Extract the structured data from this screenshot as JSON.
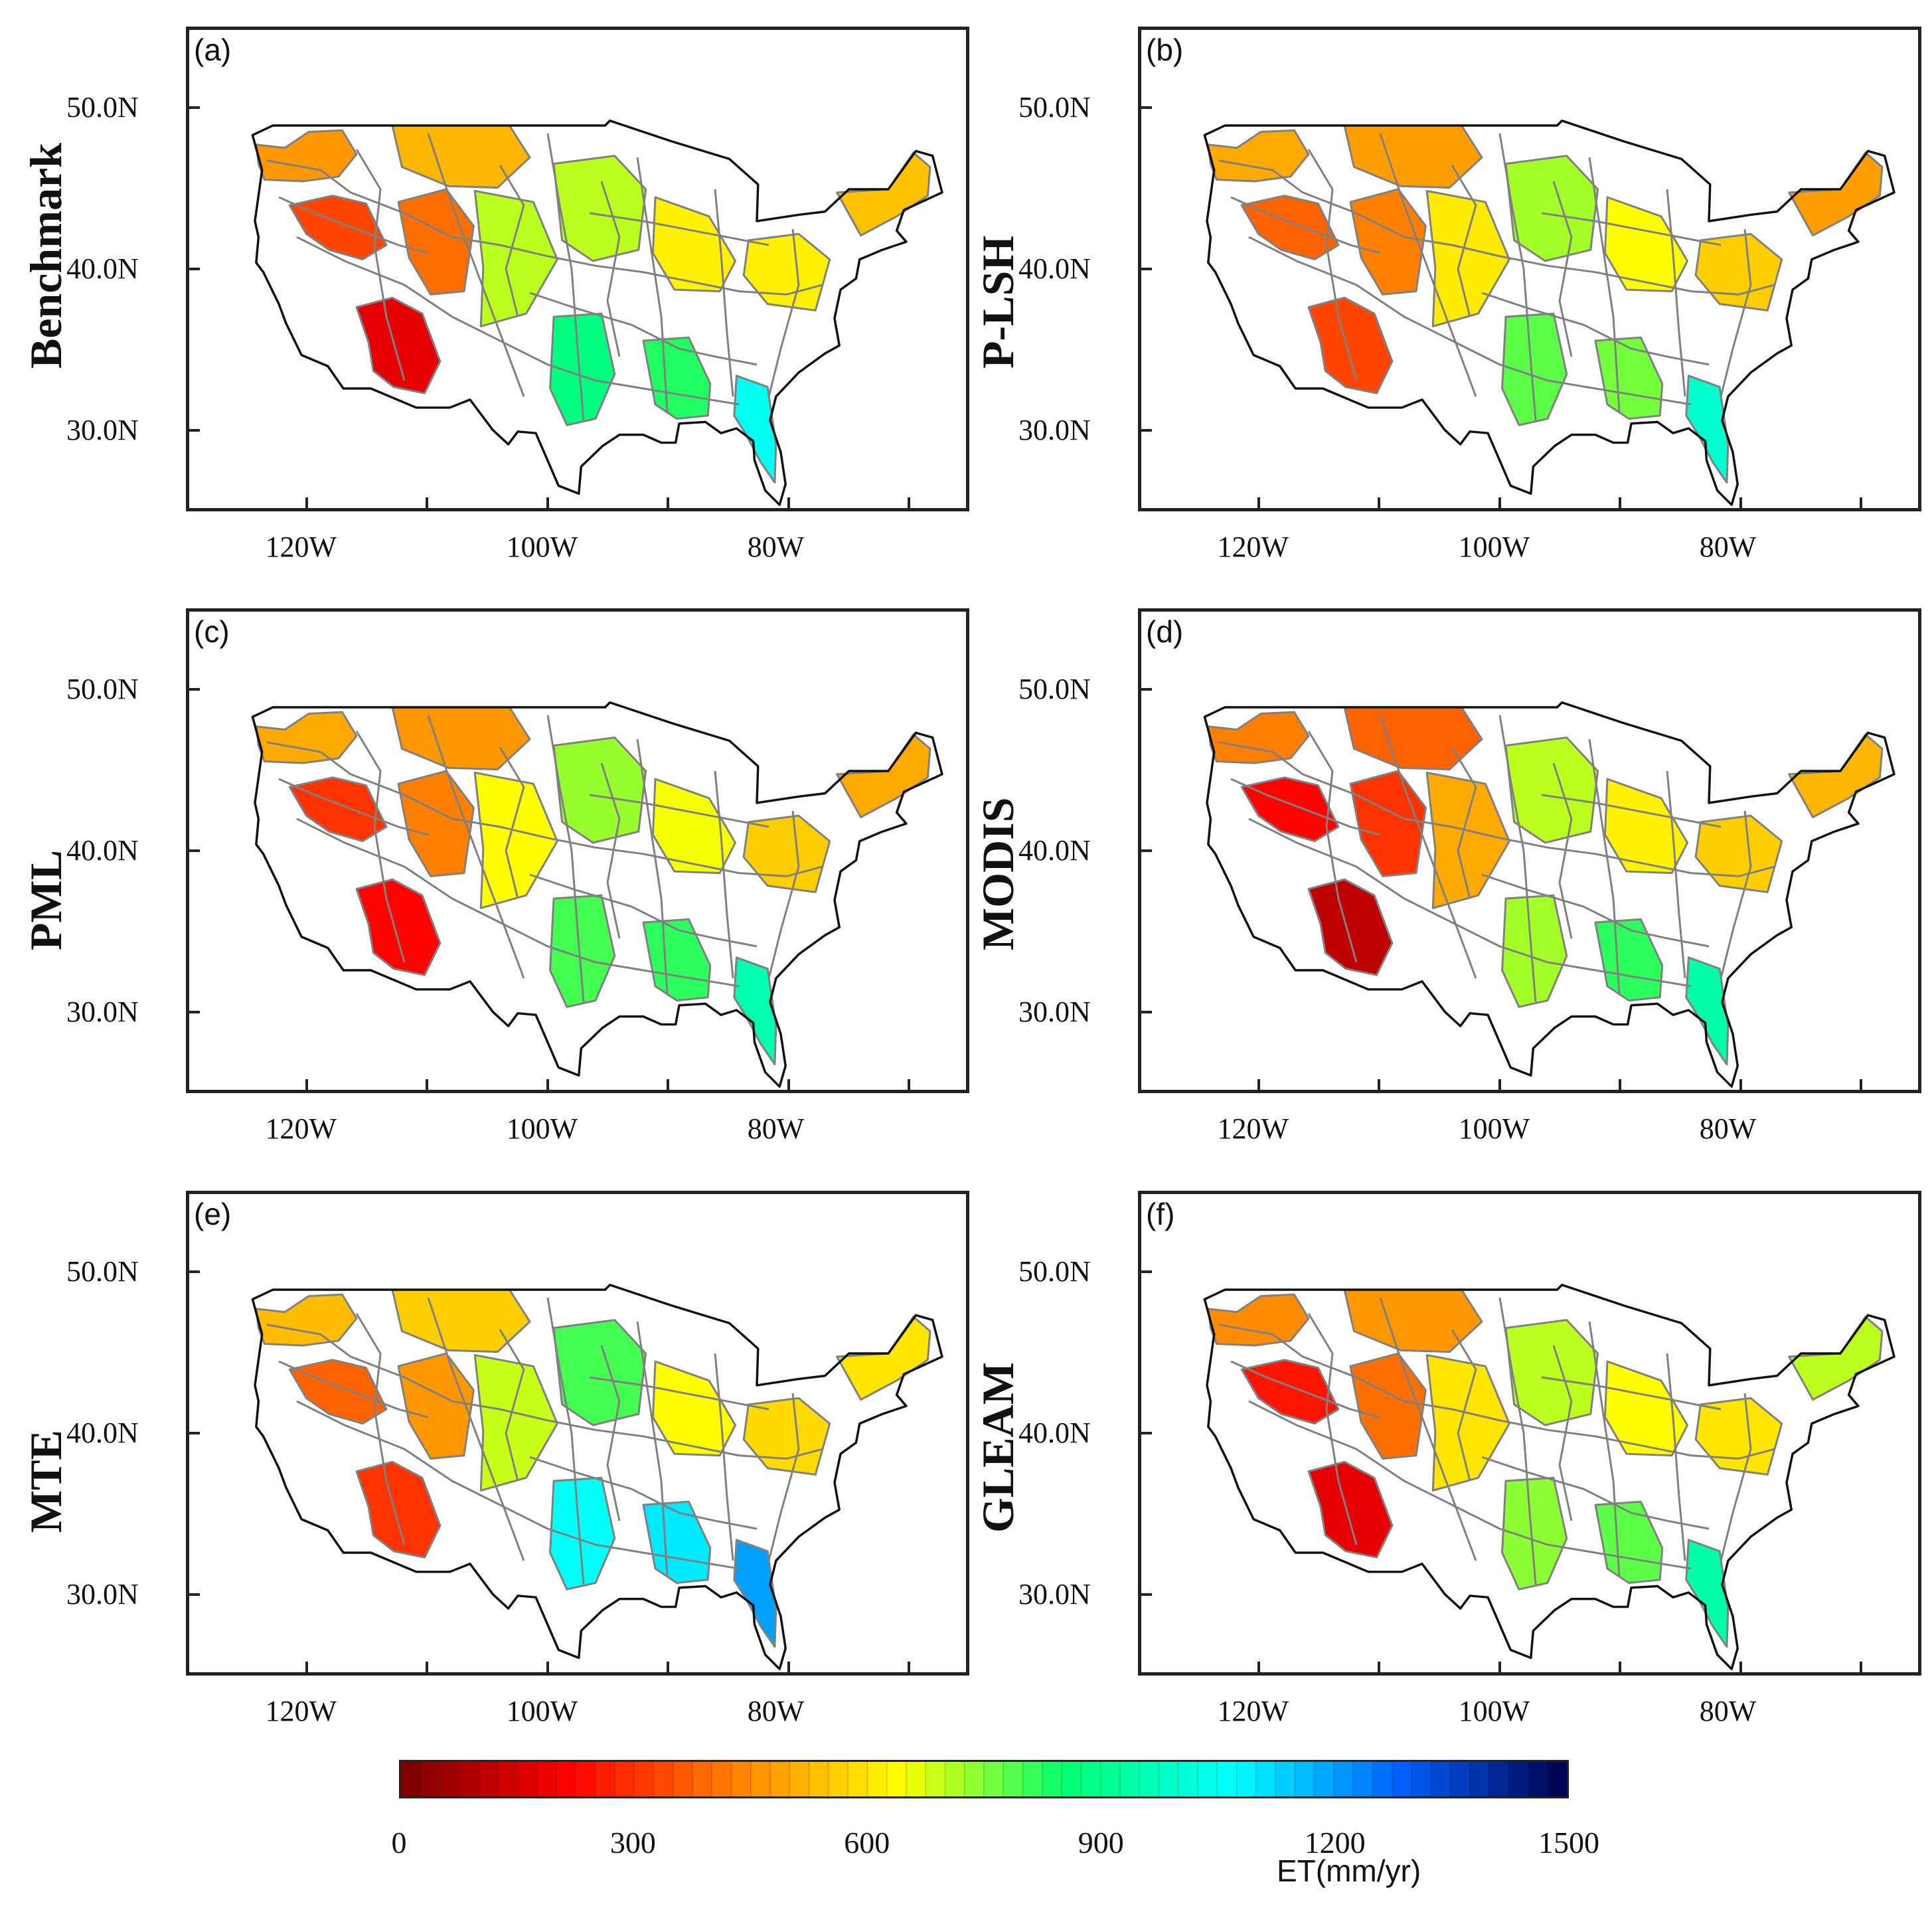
{
  "figure": {
    "panels": [
      {
        "id": "a",
        "label": "(a)",
        "title": "Benchmark",
        "scheme": [
          470,
          330,
          170,
          400,
          520,
          700,
          880,
          830,
          700,
          620,
          1050,
          620,
          540
        ]
      },
      {
        "id": "b",
        "label": "(b)",
        "title": "P-LSH",
        "scheme": [
          500,
          380,
          330,
          430,
          480,
          610,
          780,
          760,
          720,
          640,
          1000,
          560,
          480
        ]
      },
      {
        "id": "c",
        "label": "(c)",
        "title": "PML",
        "scheme": [
          500,
          300,
          220,
          430,
          470,
          640,
          800,
          820,
          730,
          650,
          950,
          560,
          500
        ]
      },
      {
        "id": "d",
        "label": "(d)",
        "title": "MODIS",
        "scheme": [
          430,
          220,
          110,
          300,
          380,
          500,
          720,
          820,
          700,
          620,
          940,
          560,
          520
        ]
      },
      {
        "id": "e",
        "label": "(e)",
        "title": "MTE",
        "scheme": [
          530,
          380,
          300,
          470,
          560,
          690,
          1060,
          1100,
          800,
          640,
          1200,
          580,
          600
        ]
      },
      {
        "id": "f",
        "label": "(f)",
        "title": "GLEAM",
        "scheme": [
          450,
          250,
          170,
          400,
          470,
          600,
          740,
          780,
          700,
          640,
          940,
          600,
          700
        ]
      }
    ],
    "lat_ticks": [
      "50.0N",
      "40.0N",
      "30.0N"
    ],
    "lon_ticks": [
      "120W",
      "100W",
      "80W"
    ],
    "lon_range": [
      -130,
      -65
    ],
    "lat_range": [
      25,
      55
    ]
  },
  "colorbar": {
    "label": "ET(mm/yr)",
    "min": 0,
    "max": 1500,
    "ticks": [
      "0",
      "300",
      "600",
      "900",
      "1200",
      "1500"
    ],
    "colors": [
      "#7a0000",
      "#ff0000",
      "#ff7f00",
      "#ffff00",
      "#00ff70",
      "#00ffff",
      "#0060ff",
      "#00004a"
    ]
  }
}
